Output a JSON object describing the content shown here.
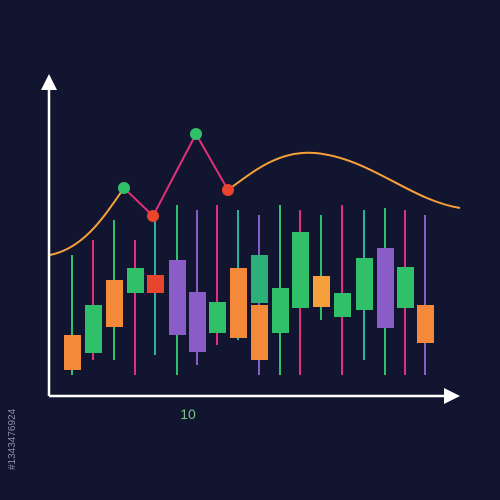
{
  "axis_label": "10",
  "watermark_id": "#1343476924"
}
